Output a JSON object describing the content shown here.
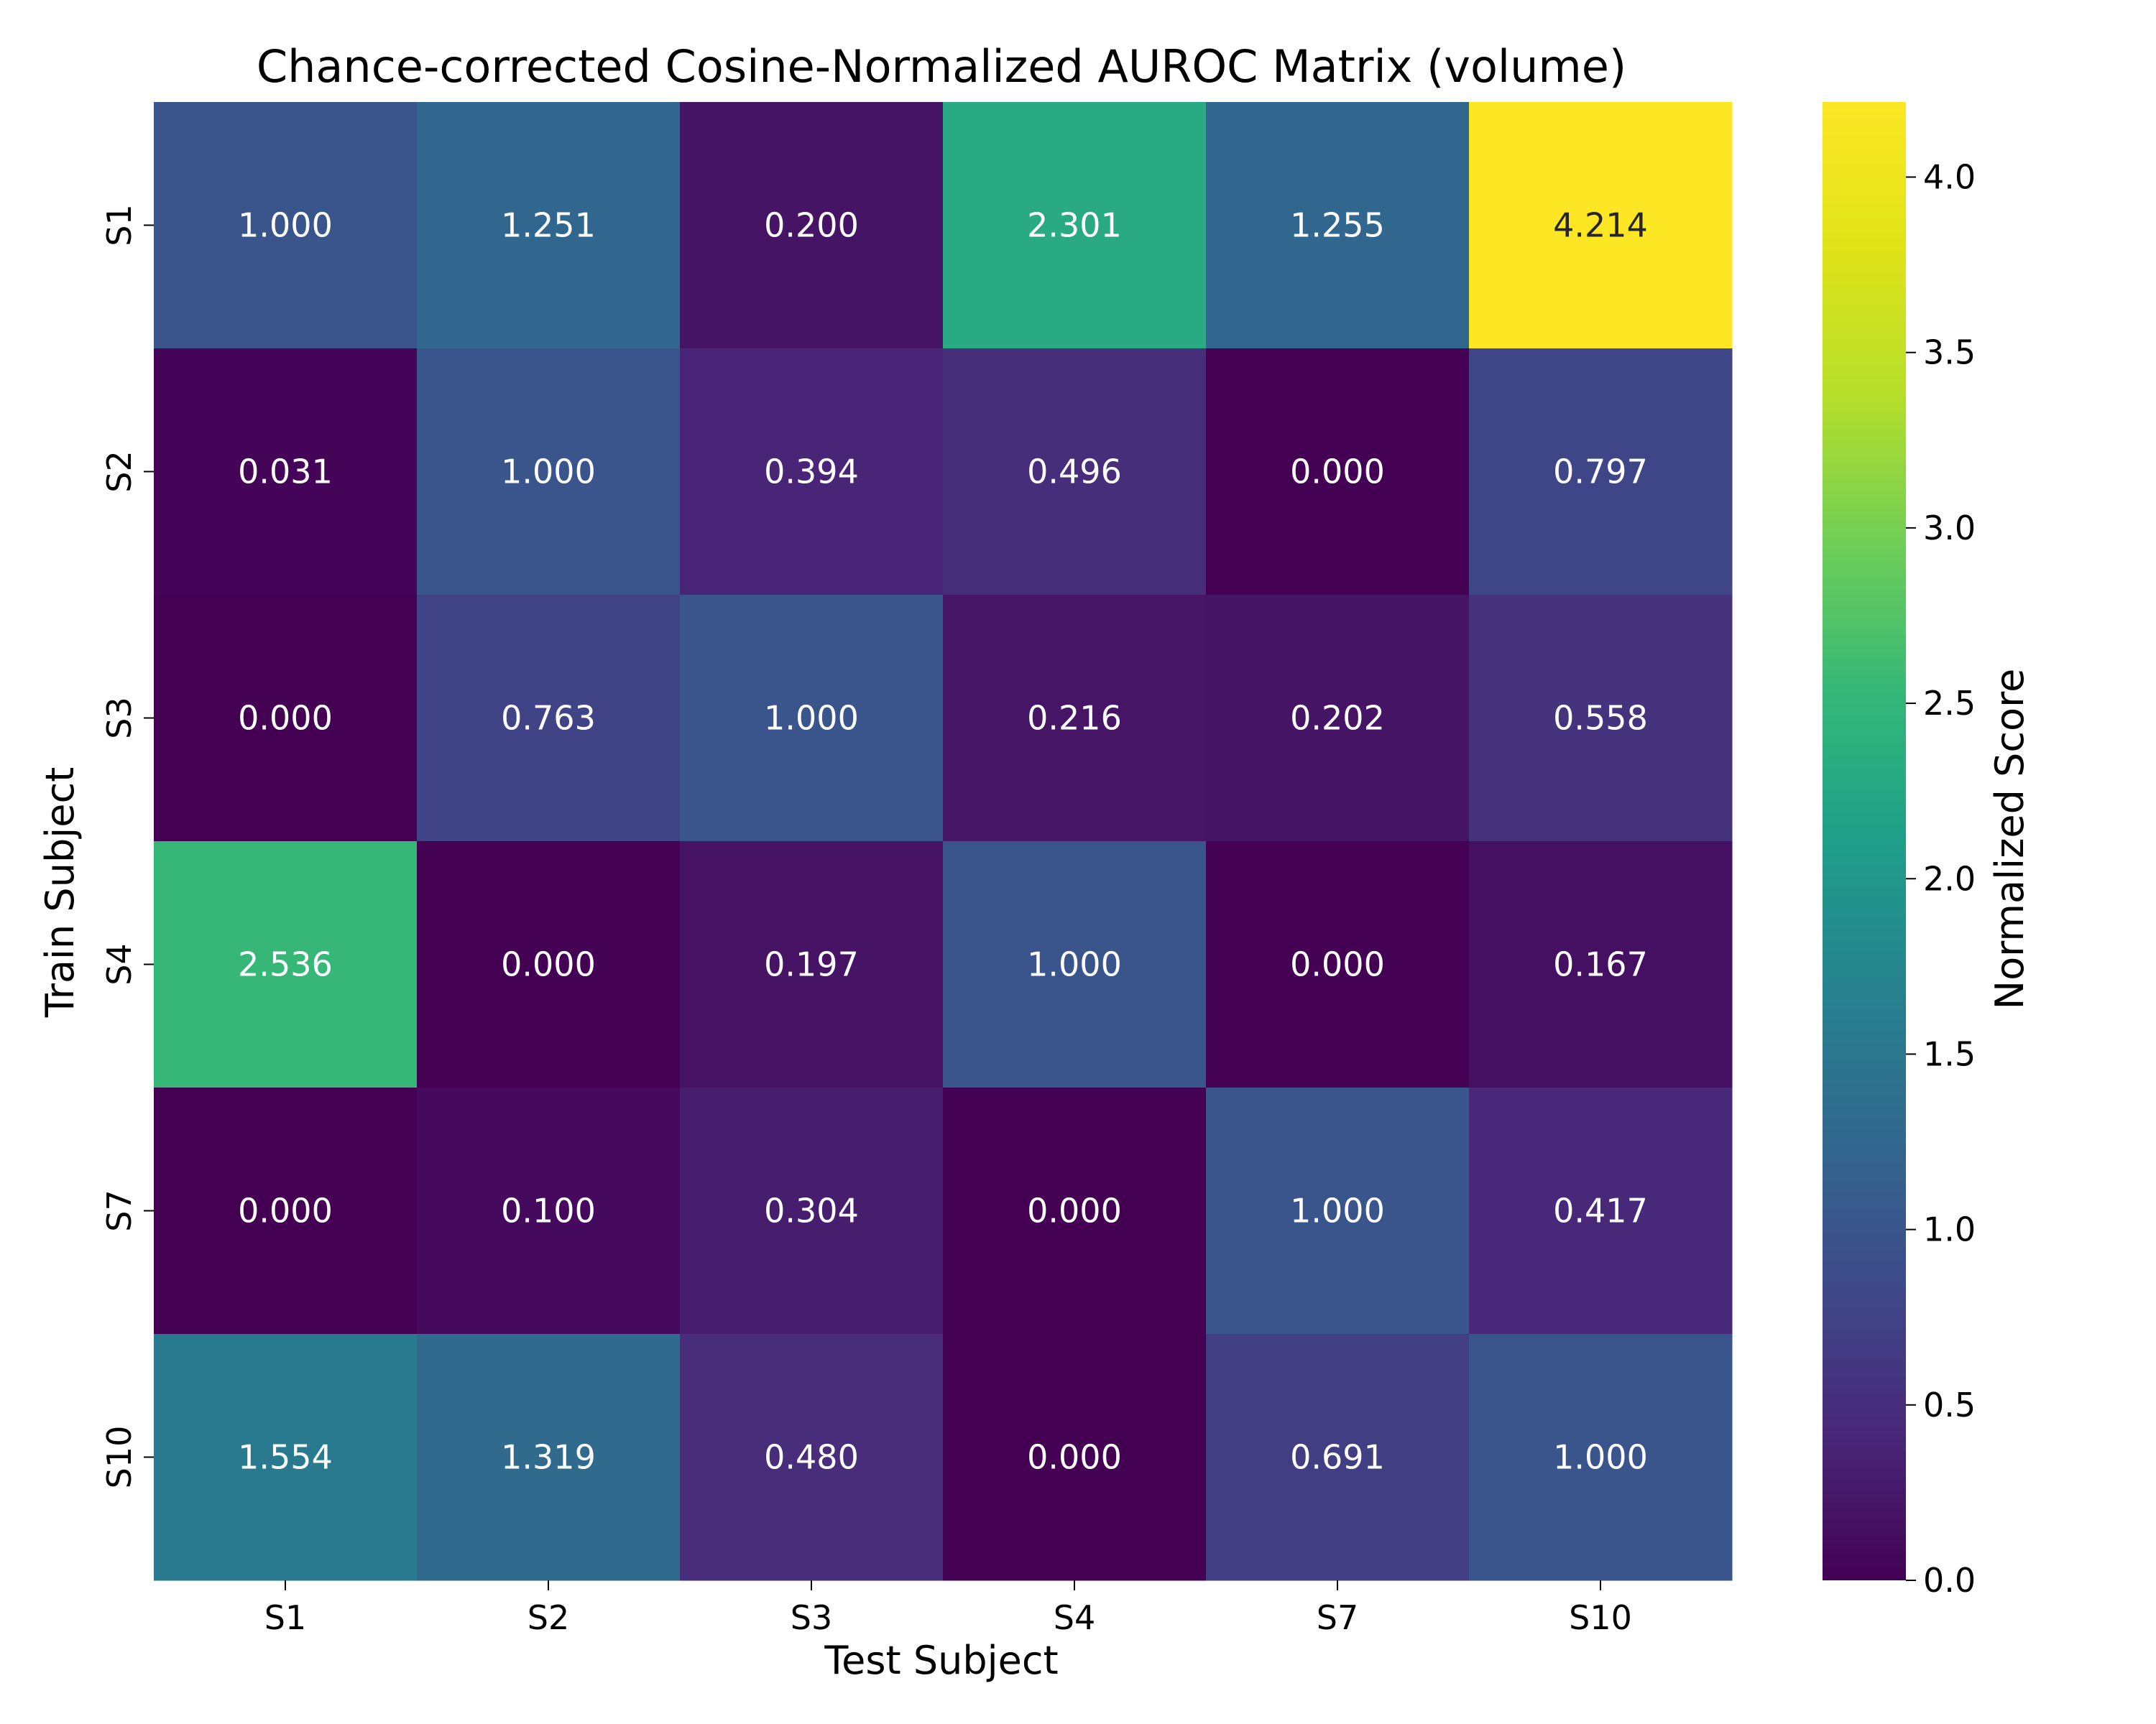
{
  "chart_data": {
    "type": "heatmap",
    "title": "Chance-corrected Cosine-Normalized AUROC Matrix (volume)",
    "xlabel": "Test Subject",
    "ylabel": "Train Subject",
    "x_categories": [
      "S1",
      "S2",
      "S3",
      "S4",
      "S7",
      "S10"
    ],
    "y_categories": [
      "S1",
      "S2",
      "S3",
      "S4",
      "S7",
      "S10"
    ],
    "values": [
      [
        1.0,
        1.251,
        0.2,
        2.301,
        1.255,
        4.214
      ],
      [
        0.031,
        1.0,
        0.394,
        0.496,
        0.0,
        0.797
      ],
      [
        0.0,
        0.763,
        1.0,
        0.216,
        0.202,
        0.558
      ],
      [
        2.536,
        0.0,
        0.197,
        1.0,
        0.0,
        0.167
      ],
      [
        0.0,
        0.1,
        0.304,
        0.0,
        1.0,
        0.417
      ],
      [
        1.554,
        1.319,
        0.48,
        0.0,
        0.691,
        1.0
      ]
    ],
    "value_format": "0.000",
    "colormap": "viridis",
    "vmin": 0.0,
    "vmax": 4.214,
    "colorbar": {
      "label": "Normalized Score",
      "ticks": [
        0.0,
        0.5,
        1.0,
        1.5,
        2.0,
        2.5,
        3.0,
        3.5,
        4.0
      ],
      "tick_labels": [
        "0.0",
        "0.5",
        "1.0",
        "1.5",
        "2.0",
        "2.5",
        "3.0",
        "3.5",
        "4.0"
      ]
    },
    "grid": false,
    "legend": "colorbar-right"
  }
}
